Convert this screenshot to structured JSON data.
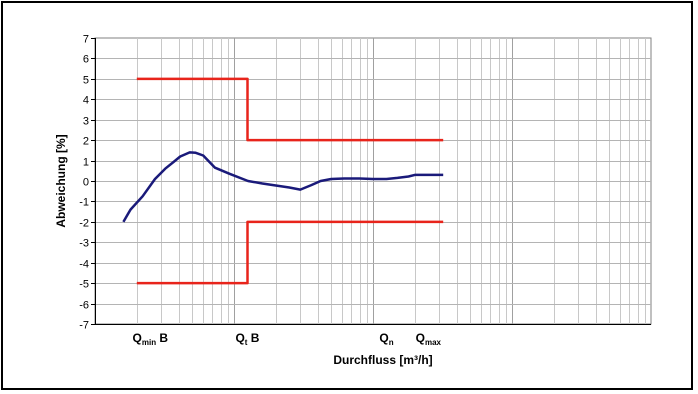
{
  "chart_data": {
    "type": "line",
    "xscale": "log",
    "xlim": [
      1,
      10000
    ],
    "ylim": [
      -7,
      7
    ],
    "yticks": [
      -7,
      -6,
      -5,
      -4,
      -3,
      -2,
      -1,
      0,
      1,
      2,
      3,
      4,
      5,
      6,
      7
    ],
    "grid": true,
    "xlabel": "Durchfluss [m³/h]",
    "ylabel": "Abweichung [%]",
    "x_category_labels": [
      {
        "x": 2.5,
        "main": "Q",
        "sub": "min",
        "suffix": " B"
      },
      {
        "x": 12.5,
        "main": "Q",
        "sub": "t",
        "suffix": " B"
      },
      {
        "x": 125,
        "main": "Q",
        "sub": "n",
        "suffix": ""
      },
      {
        "x": 250,
        "main": "Q",
        "sub": "max",
        "suffix": ""
      }
    ],
    "series": [
      {
        "color": "#1a1a7a",
        "x": [
          1.6,
          1.8,
          2.2,
          2.7,
          3.2,
          3.7,
          4.1,
          4.8,
          5.3,
          6.0,
          7.3,
          9.3,
          12.6,
          16.0,
          20.0,
          25.0,
          30.0,
          36.0,
          42.0,
          50.0,
          62.0,
          80.0,
          100.0,
          125.0,
          150.0,
          180.0,
          200.0,
          230.0,
          260.0,
          320.0
        ],
        "y": [
          -2.0,
          -1.4,
          -0.75,
          0.1,
          0.6,
          0.95,
          1.2,
          1.4,
          1.38,
          1.25,
          0.65,
          0.35,
          0.0,
          -0.12,
          -0.22,
          -0.32,
          -0.42,
          -0.2,
          0.0,
          0.1,
          0.12,
          0.12,
          0.1,
          0.1,
          0.15,
          0.22,
          0.3,
          0.3,
          0.3,
          0.3
        ]
      },
      {
        "color": "#e8241b",
        "x": [
          2.0,
          12.5,
          12.5,
          320.0
        ],
        "y": [
          5,
          5,
          2,
          2
        ]
      },
      {
        "color": "#e8241b",
        "x": [
          2.0,
          12.5,
          12.5,
          320.0
        ],
        "y": [
          -5,
          -5,
          -2,
          -2
        ]
      }
    ]
  }
}
